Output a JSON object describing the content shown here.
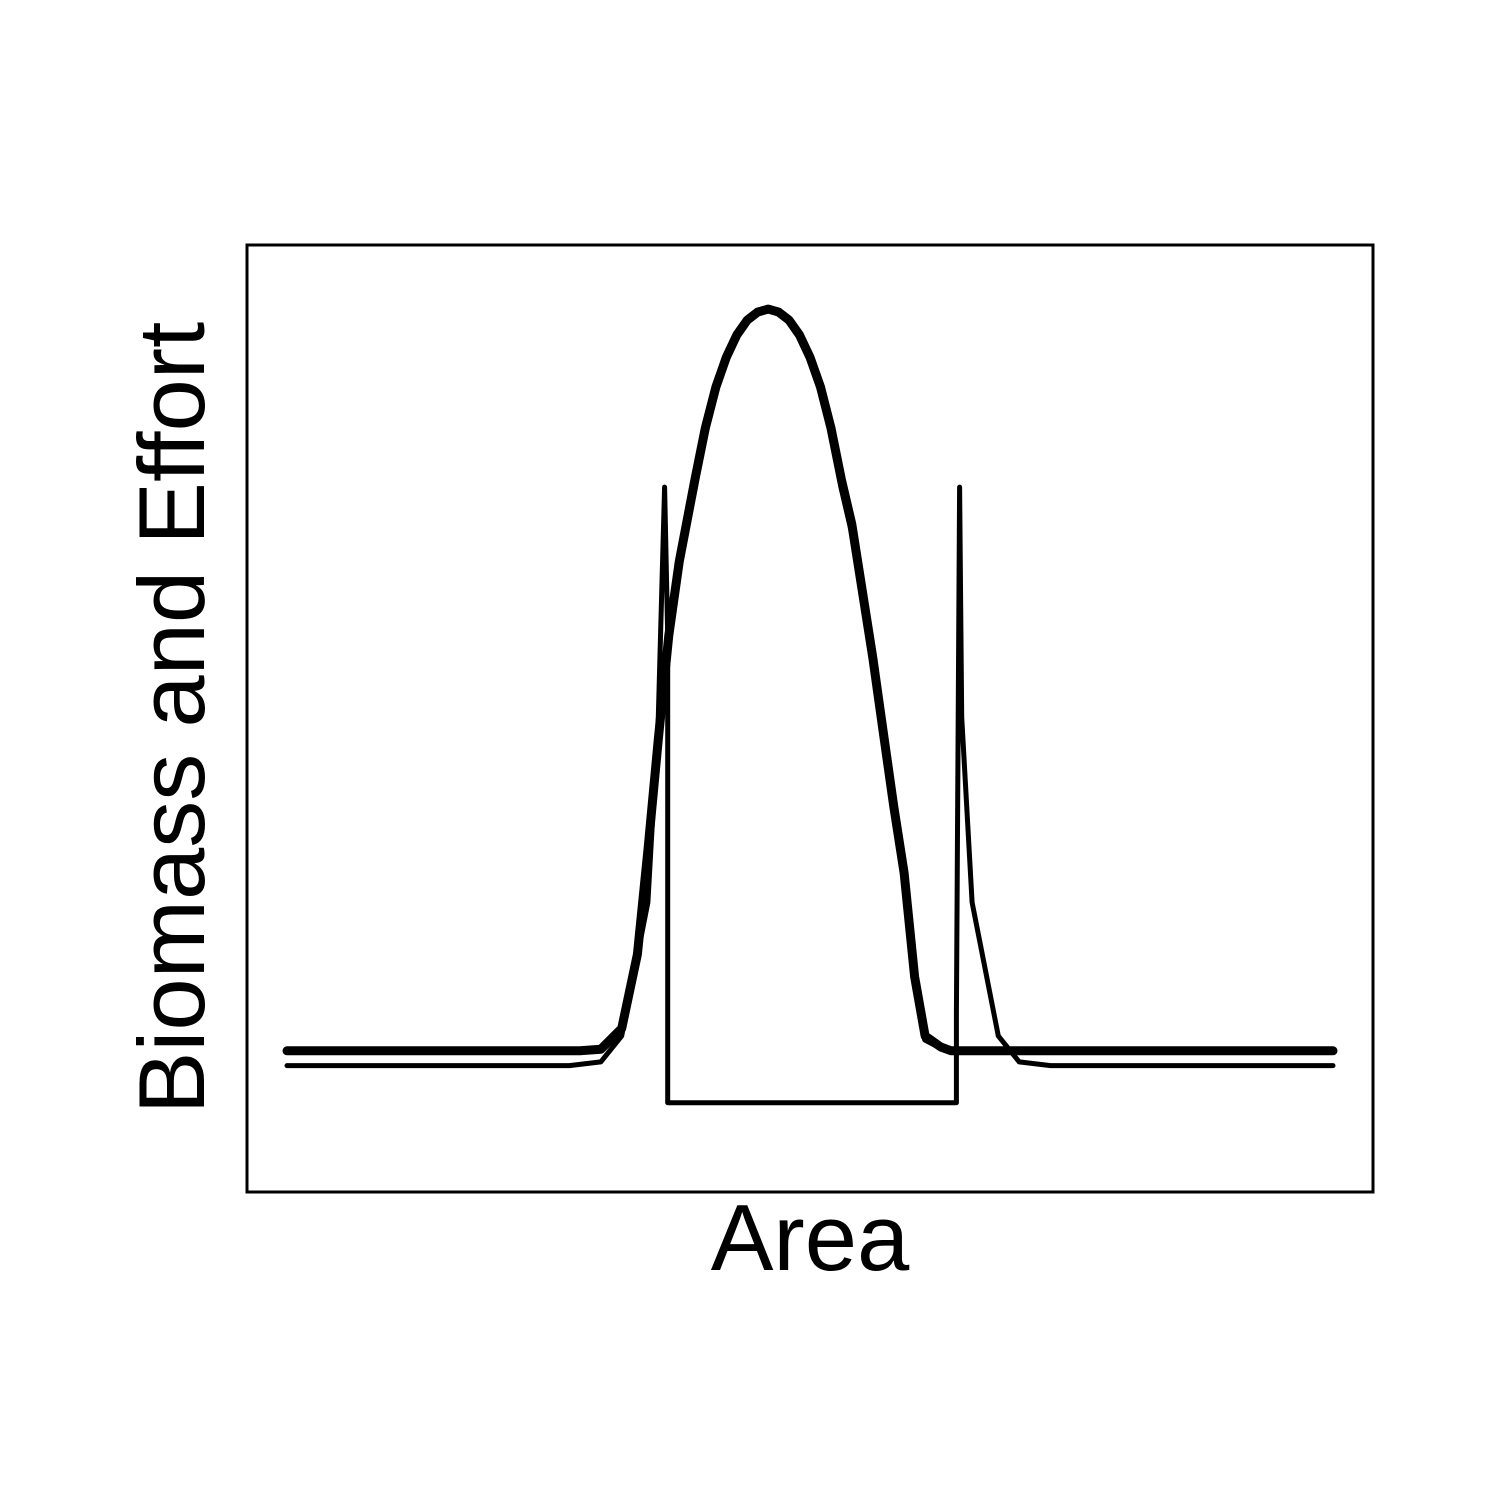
{
  "chart_data": {
    "type": "line",
    "title": "",
    "xlabel": "Area",
    "ylabel": "Biomass and Effort",
    "xlim": [
      0,
      1
    ],
    "ylim": [
      -0.15,
      1.05
    ],
    "grid": false,
    "legend": "none",
    "axis_ticks": false,
    "line_color": "#000000",
    "x": [
      0,
      0.05,
      0.1,
      0.15,
      0.2,
      0.25,
      0.28,
      0.3,
      0.32,
      0.335,
      0.345,
      0.355,
      0.365,
      0.375,
      0.39,
      0.4,
      0.41,
      0.42,
      0.43,
      0.44,
      0.45,
      0.46,
      0.47,
      0.48,
      0.49,
      0.5,
      0.51,
      0.52,
      0.53,
      0.54,
      0.55,
      0.56,
      0.57,
      0.58,
      0.59,
      0.6,
      0.61,
      0.625,
      0.635,
      0.645,
      0.655,
      0.665,
      0.68,
      0.7,
      0.72,
      0.75,
      0.8,
      0.85,
      0.9,
      0.95,
      1.0
    ],
    "series": [
      {
        "values": [
          0.0,
          0.0,
          0.0,
          0.0,
          0.0,
          0.0,
          0.0,
          0.002,
          0.03,
          0.13,
          0.27,
          0.42,
          0.56,
          0.66,
          0.77,
          0.84,
          0.895,
          0.935,
          0.965,
          0.985,
          0.996,
          1.0,
          0.996,
          0.985,
          0.965,
          0.935,
          0.895,
          0.84,
          0.77,
          0.71,
          0.62,
          0.53,
          0.43,
          0.33,
          0.24,
          0.1,
          0.02,
          0.005,
          0.0,
          0.0,
          0.0,
          0.0,
          0.0,
          0.0,
          0.0,
          0.0,
          0.0,
          0.0,
          0.0,
          0.0,
          0.0
        ],
        "width": 9
      },
      {
        "values": [
          0.0,
          0.0,
          0.0,
          0.0,
          0.0,
          0.0,
          0.0,
          0.002,
          0.03,
          0.13,
          0.27,
          0.42,
          0.56,
          0.66,
          0.76,
          0.84,
          0.895,
          0.935,
          0.965,
          0.985,
          0.996,
          1.0,
          0.996,
          0.985,
          0.965,
          0.935,
          0.895,
          0.84,
          0.76,
          0.7,
          0.61,
          0.52,
          0.42,
          0.32,
          0.23,
          0.09,
          0.015,
          0.004,
          0.0,
          0.0,
          0.0,
          0.0,
          0.0,
          0.0,
          0.0,
          0.0,
          0.0,
          0.0,
          0.0,
          0.0,
          0.0
        ],
        "width": 6
      }
    ],
    "effort_series": {
      "x": [
        0,
        0.1,
        0.2,
        0.27,
        0.3,
        0.32,
        0.345,
        0.355,
        0.361,
        0.364,
        0.364,
        0.64,
        0.64,
        0.643,
        0.645,
        0.655,
        0.68,
        0.7,
        0.73,
        0.8,
        0.9,
        1.0
      ],
      "values": [
        -0.02,
        -0.02,
        -0.02,
        -0.02,
        -0.015,
        0.02,
        0.2,
        0.45,
        0.76,
        0.56,
        -0.07,
        -0.07,
        0.05,
        0.76,
        0.45,
        0.2,
        0.02,
        -0.015,
        -0.02,
        -0.02,
        -0.02,
        -0.02
      ],
      "width": 5
    }
  }
}
